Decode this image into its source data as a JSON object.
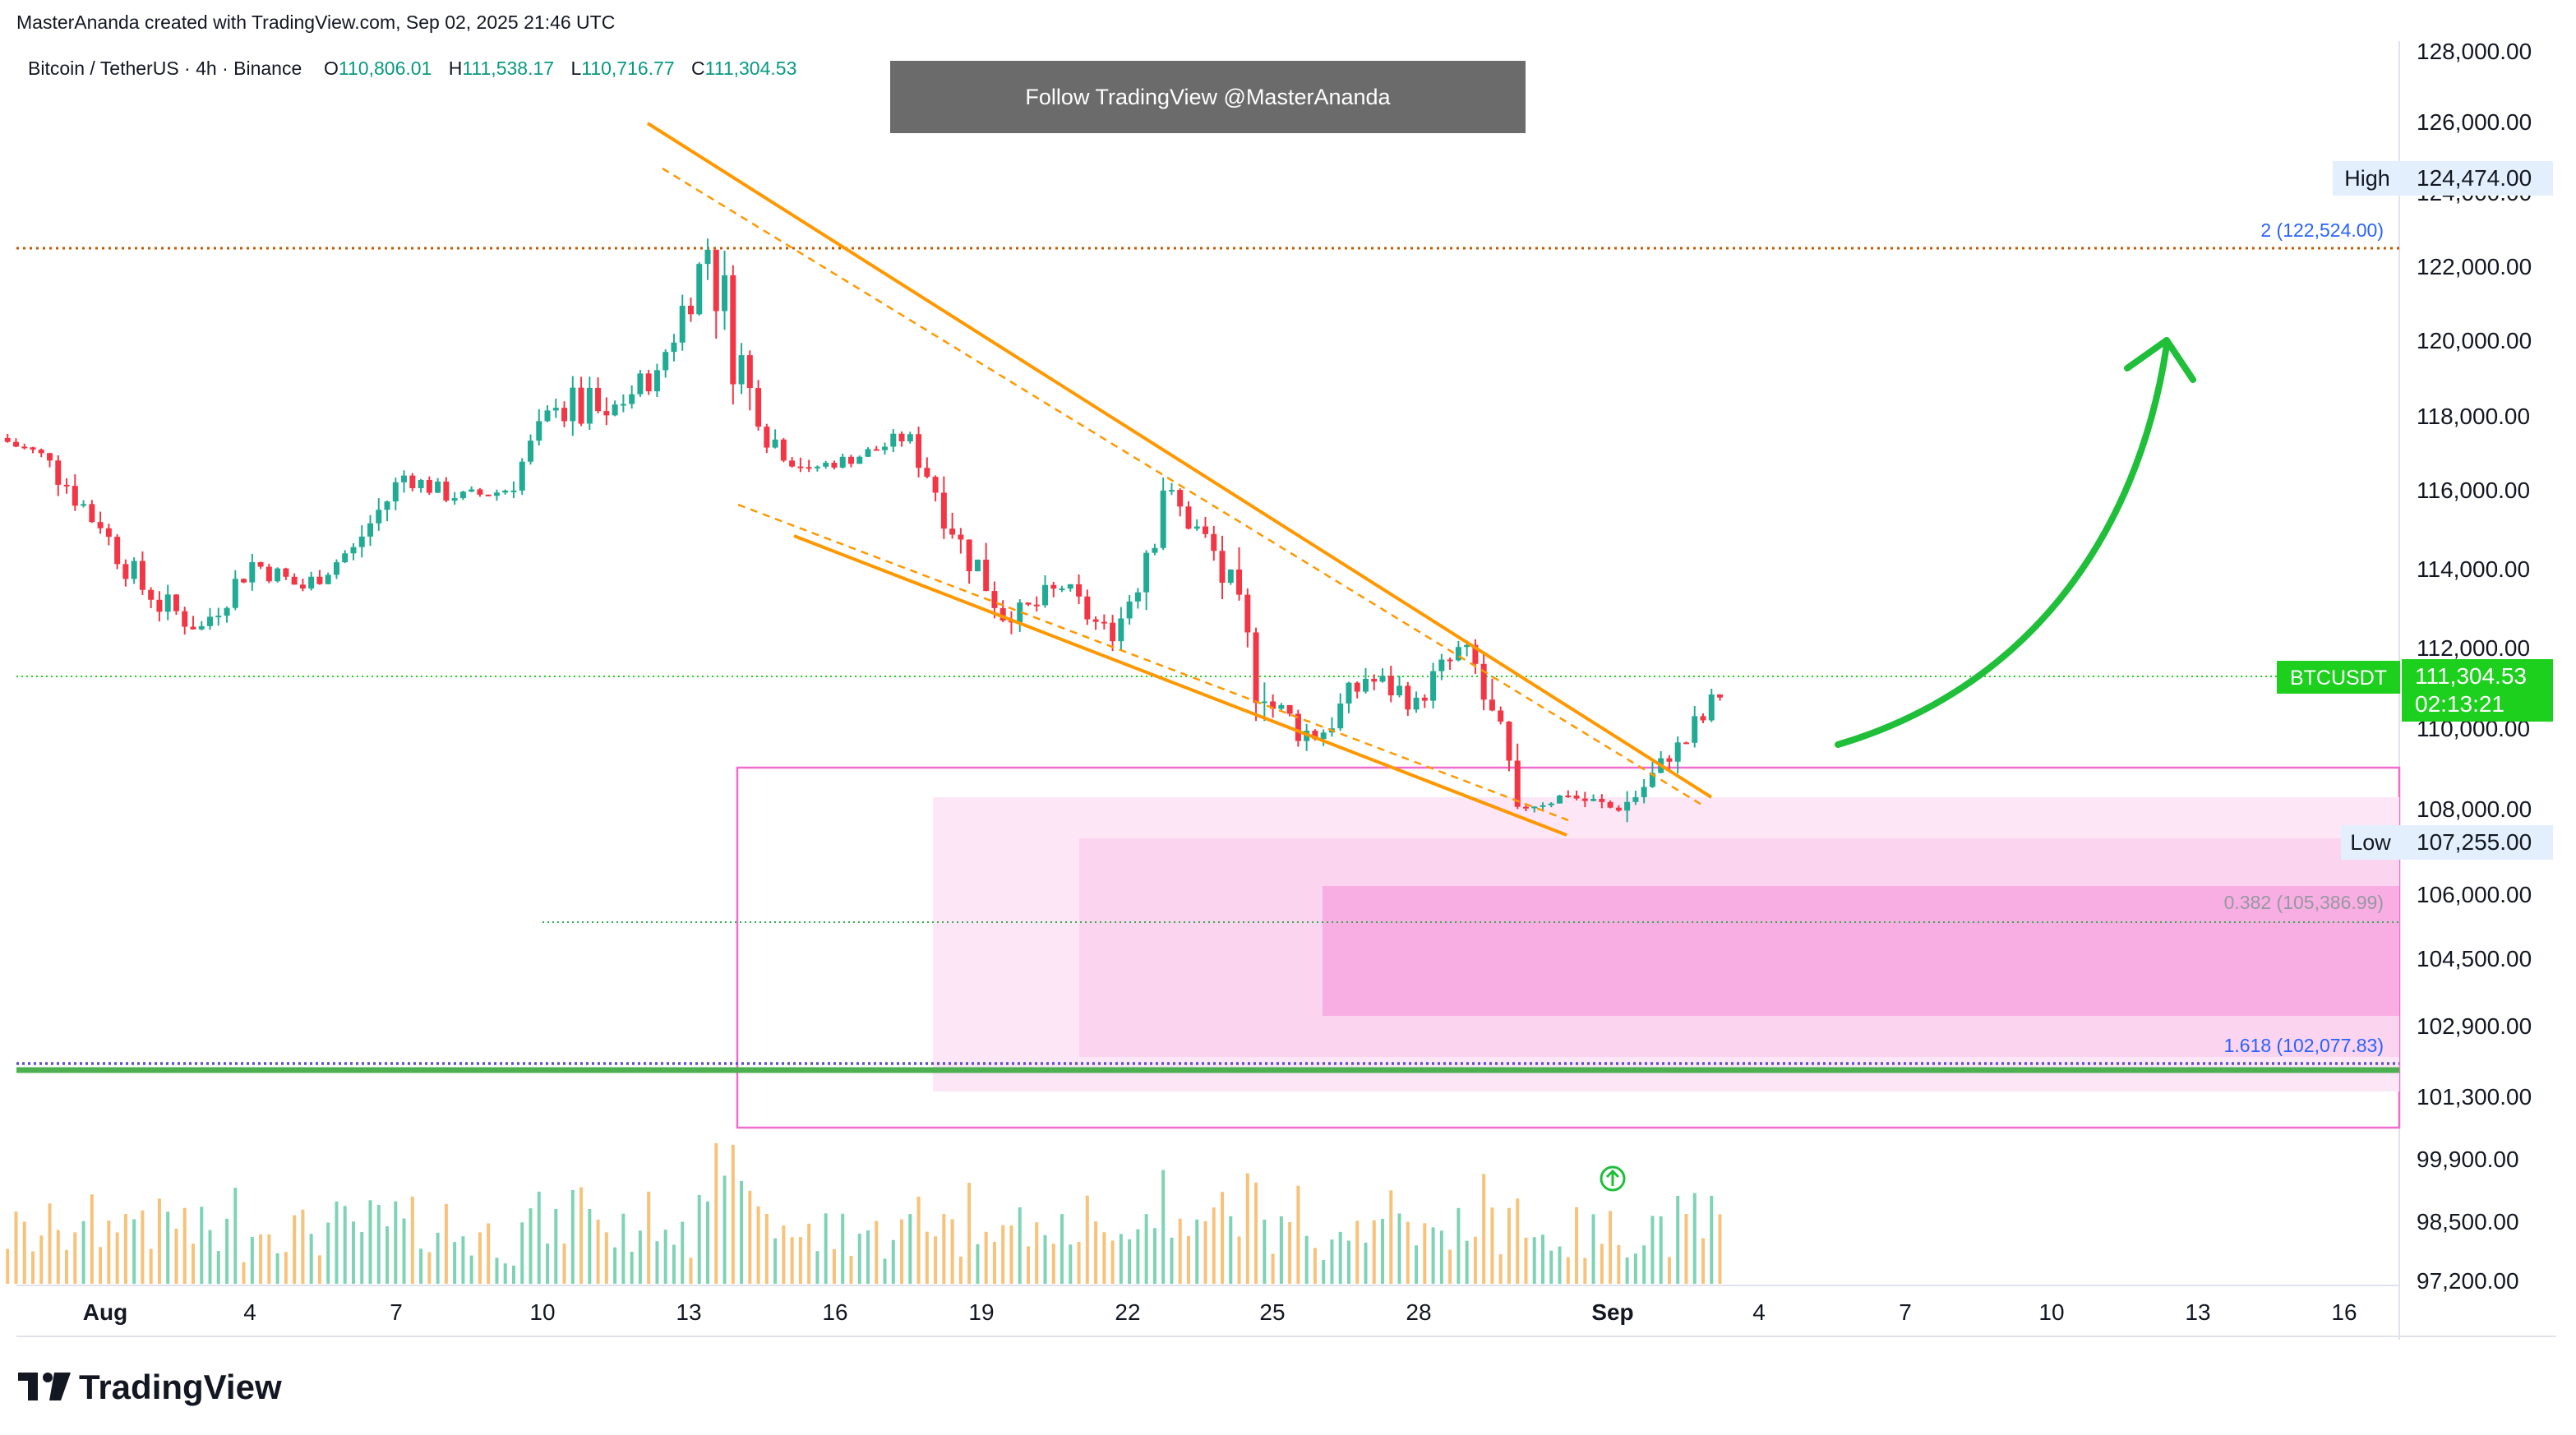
{
  "header": {
    "credit": "MasterAnanda created with TradingView.com, Sep 02, 2025 21:46 UTC",
    "symbol": "Bitcoin / TetherUS · 4h · Binance",
    "open_label": "O",
    "open": "110,806.01",
    "high_label": "H",
    "high": "111,538.17",
    "low_label": "L",
    "low": "110,716.77",
    "close_label": "C",
    "close": "111,304.53"
  },
  "banner": "Follow TradingView @MasterAnanda",
  "logo_text": "TradingView",
  "colors": {
    "up": "#22ab94",
    "down": "#f23645",
    "wedge": "#ff9800",
    "projection_arrow": "#1fbf3a",
    "pink_zone": "#f06ccf",
    "fib_2": "#c05a00",
    "fib_1618": "#5b4fcf",
    "support_green": "#4caf50",
    "last_price": "#1ed01e"
  },
  "chart_data": {
    "type": "candlestick",
    "symbol": "BTCUSDT",
    "timeframe": "4h",
    "y_axis": {
      "ticks": [
        "128,000.00",
        "126,000.00",
        "124,000.00",
        "122,000.00",
        "120,000.00",
        "118,000.00",
        "116,000.00",
        "114,000.00",
        "112,000.00",
        "110,000.00",
        "108,000.00",
        "106,000.00",
        "104,500.00",
        "102,900.00",
        "101,300.00",
        "99,900.00",
        "98,500.00",
        "97,200.00"
      ],
      "range": [
        97200,
        128000
      ]
    },
    "x_axis": {
      "ticks": [
        "Aug",
        "4",
        "7",
        "10",
        "13",
        "16",
        "19",
        "22",
        "25",
        "28",
        "Sep",
        "4",
        "7",
        "10",
        "13",
        "16"
      ],
      "bold_ticks": [
        "Aug",
        "Sep"
      ]
    },
    "price_labels": {
      "high_label": "High",
      "high_value": "124,474.00",
      "low_label": "Low",
      "low_value": "107,255.00",
      "last_label": "BTCUSDT",
      "last_value": "111,304.53",
      "countdown": "02:13:21"
    },
    "fib_levels": [
      {
        "label": "2 (122,524.00)",
        "price": 122524
      },
      {
        "label": "0.382 (105,386.99)",
        "price": 105386.99
      },
      {
        "label": "1.618 (102,077.83)",
        "price": 102077.83
      }
    ],
    "candles_approx": [
      [
        "Jul 31",
        118200,
        118600,
        117000,
        117600
      ],
      [
        "Aug 1",
        117600,
        117800,
        115200,
        115800
      ],
      [
        "Aug 2",
        115800,
        116000,
        113500,
        113900
      ],
      [
        "Aug 3",
        113900,
        114500,
        112000,
        113200
      ],
      [
        "Aug 4",
        113200,
        115300,
        113100,
        114900
      ],
      [
        "Aug 5",
        114900,
        115200,
        113400,
        114200
      ],
      [
        "Aug 6",
        114200,
        115600,
        113900,
        115300
      ],
      [
        "Aug 7",
        115300,
        117600,
        115000,
        117200
      ],
      [
        "Aug 8",
        117200,
        117500,
        116000,
        116600
      ],
      [
        "Aug 9",
        116600,
        117400,
        116200,
        116800
      ],
      [
        "Aug 10",
        116800,
        119400,
        116600,
        119000
      ],
      [
        "Aug 11",
        119000,
        122300,
        118200,
        118800
      ],
      [
        "Aug 12",
        118800,
        120500,
        118200,
        120000
      ],
      [
        "Aug 13",
        120000,
        123500,
        119800,
        123200
      ],
      [
        "Aug 14",
        123200,
        124474,
        117200,
        118500
      ],
      [
        "Aug 15",
        118500,
        119200,
        116800,
        117400
      ],
      [
        "Aug 16",
        117400,
        118000,
        117000,
        117700
      ],
      [
        "Aug 17",
        117700,
        118600,
        117300,
        118300
      ],
      [
        "Aug 18",
        118300,
        118500,
        114800,
        115500
      ],
      [
        "Aug 19",
        115500,
        116500,
        112800,
        113300
      ],
      [
        "Aug 20",
        113300,
        114700,
        112300,
        114200
      ],
      [
        "Aug 21",
        114200,
        114600,
        112400,
        112800
      ],
      [
        "Aug 22",
        112800,
        117400,
        111700,
        116800
      ],
      [
        "Aug 23",
        116800,
        117000,
        114600,
        115200
      ],
      [
        "Aug 24",
        115200,
        115600,
        110600,
        111200
      ],
      [
        "Aug 25",
        111200,
        111900,
        109000,
        110200
      ],
      [
        "Aug 26",
        110200,
        112400,
        109800,
        111800
      ],
      [
        "Aug 27",
        111800,
        113000,
        110600,
        111300
      ],
      [
        "Aug 28",
        111300,
        113300,
        110800,
        112700
      ],
      [
        "Aug 29",
        112700,
        112900,
        107900,
        108400
      ],
      [
        "Aug 30",
        108400,
        109100,
        107900,
        108700
      ],
      [
        "Aug 31",
        108700,
        109400,
        107900,
        108300
      ],
      [
        "Sep 1",
        108300,
        109900,
        107255,
        109600
      ],
      [
        "Sep 2",
        109600,
        111538,
        108800,
        111304
      ]
    ],
    "annotations": [
      "Falling wedge (orange trendlines)",
      "Projected upward arrow (green)",
      "Pink demand zones"
    ]
  }
}
